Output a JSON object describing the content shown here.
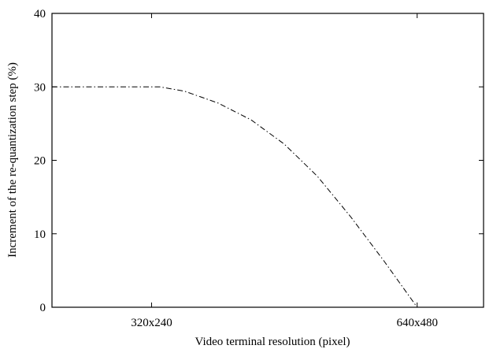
{
  "chart_data": {
    "type": "line",
    "title": "",
    "xlabel": "Video terminal resolution (pixel)",
    "ylabel": "Increment of the re-quantization step (%)",
    "x_ticks": [
      "320x240",
      "640x480"
    ],
    "x_tick_values": [
      320,
      640
    ],
    "xlim": [
      200,
      720
    ],
    "ylim": [
      0,
      40
    ],
    "y_ticks": [
      0,
      10,
      20,
      30,
      40
    ],
    "grid": false,
    "legend": "none",
    "series": [
      {
        "line_style": "dash-dot",
        "color": "#000000",
        "x": [
          200,
          240,
          280,
          320,
          330,
          360,
          400,
          440,
          480,
          520,
          560,
          600,
          640,
          720
        ],
        "y": [
          30,
          30,
          30,
          30,
          30,
          29.4,
          27.8,
          25.5,
          22.2,
          17.8,
          12.3,
          6.3,
          0,
          0
        ]
      }
    ]
  }
}
